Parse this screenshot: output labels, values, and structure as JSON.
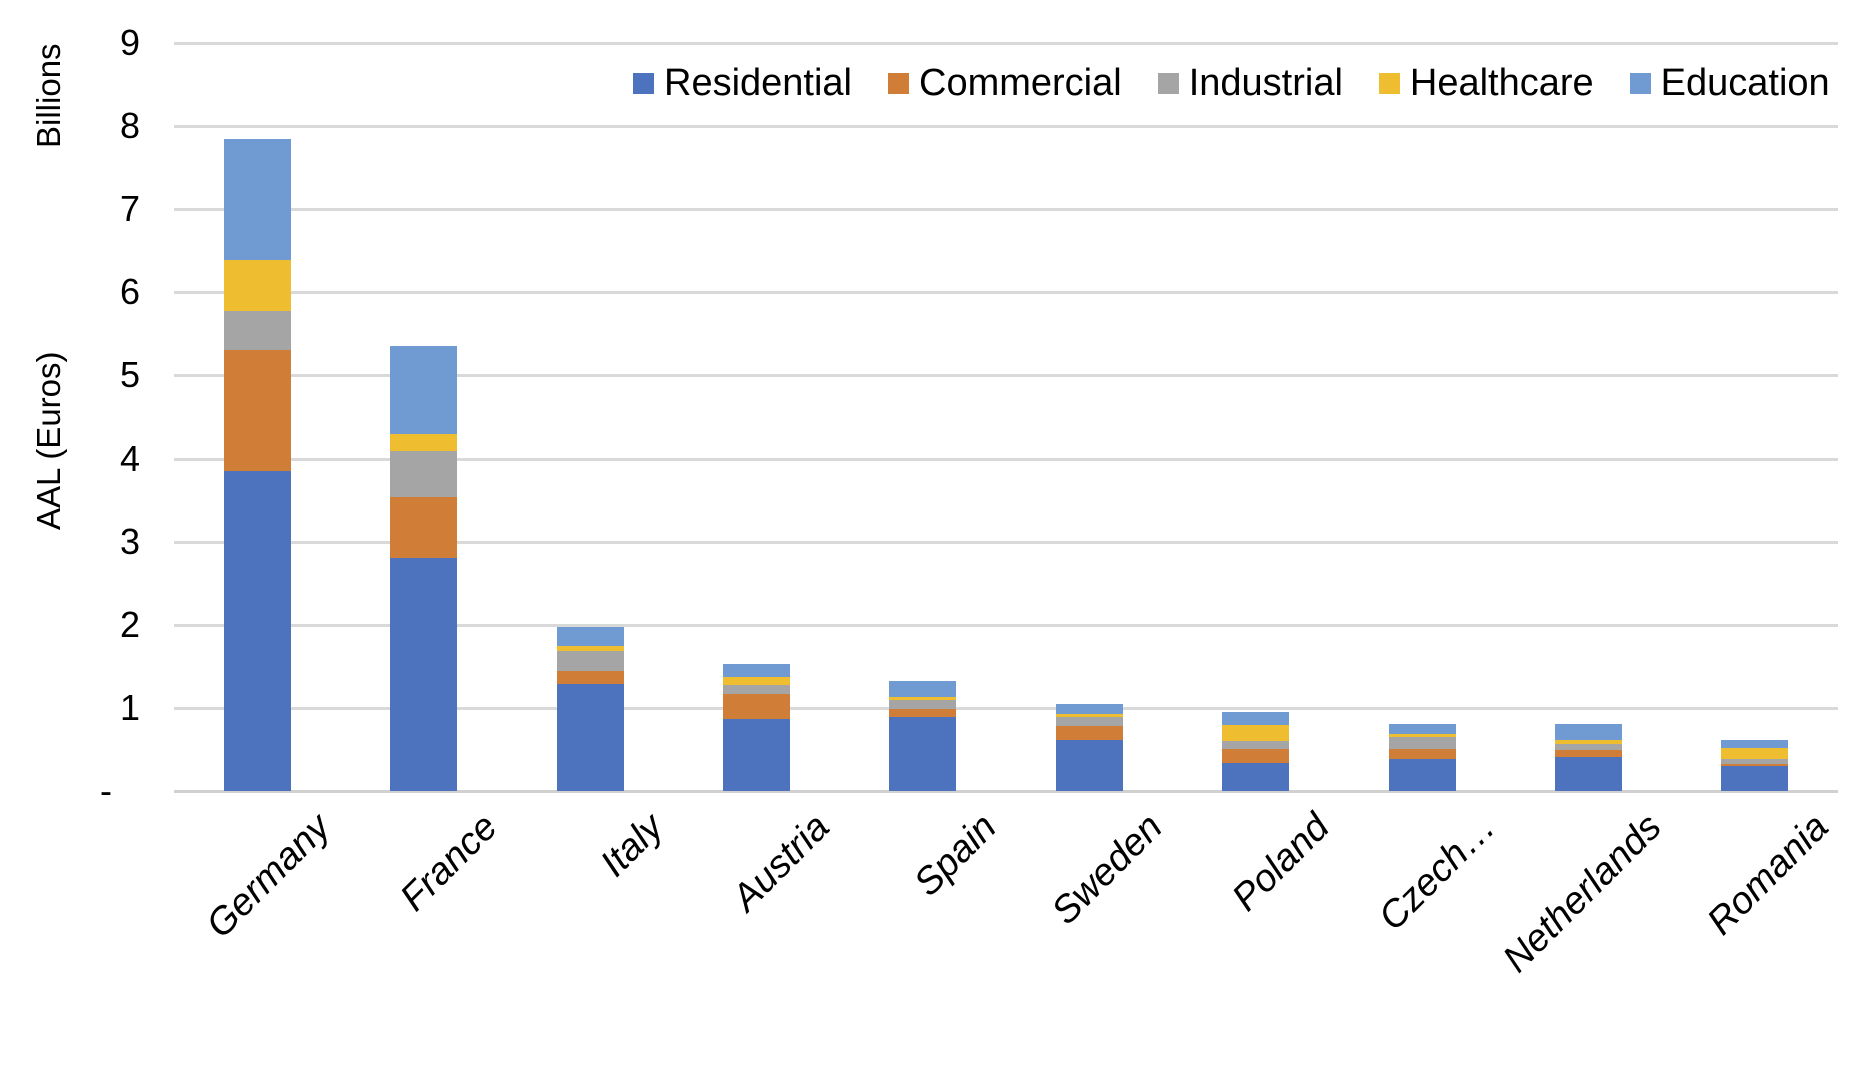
{
  "chart_data": {
    "type": "bar",
    "stacked": true,
    "categories": [
      "Germany",
      "France",
      "Italy",
      "Austria",
      "Spain",
      "Sweden",
      "Poland",
      "Czech…",
      "Netherlands",
      "Romania"
    ],
    "series": [
      {
        "name": "Residential",
        "color": "#4D72BE",
        "values": [
          3.85,
          2.8,
          1.29,
          0.87,
          0.89,
          0.61,
          0.34,
          0.39,
          0.41,
          0.3
        ]
      },
      {
        "name": "Commercial",
        "color": "#D07E37",
        "values": [
          1.46,
          0.74,
          0.16,
          0.3,
          0.1,
          0.17,
          0.16,
          0.12,
          0.08,
          0.03
        ]
      },
      {
        "name": "Industrial",
        "color": "#A5A5A5",
        "values": [
          0.46,
          0.55,
          0.24,
          0.1,
          0.1,
          0.11,
          0.1,
          0.14,
          0.07,
          0.05
        ]
      },
      {
        "name": "Healthcare",
        "color": "#EEBE30",
        "values": [
          0.62,
          0.21,
          0.06,
          0.1,
          0.04,
          0.04,
          0.2,
          0.04,
          0.05,
          0.14
        ]
      },
      {
        "name": "Education",
        "color": "#6F9BD2",
        "values": [
          1.46,
          1.05,
          0.22,
          0.16,
          0.2,
          0.12,
          0.15,
          0.12,
          0.2,
          0.1
        ]
      }
    ],
    "ylabel_top": "Billions",
    "ylabel": "AAL (Euros)",
    "y_ticks": [
      "9",
      "8",
      "7",
      "6",
      "5",
      "4",
      "3",
      "2",
      "1",
      "-"
    ],
    "ylim": [
      0,
      9
    ],
    "grid": true,
    "legend_position": "top",
    "gridline_color": "#D9D9D9",
    "baseline_color": "#D1D1D1",
    "background_color": "#FFFFFF"
  }
}
